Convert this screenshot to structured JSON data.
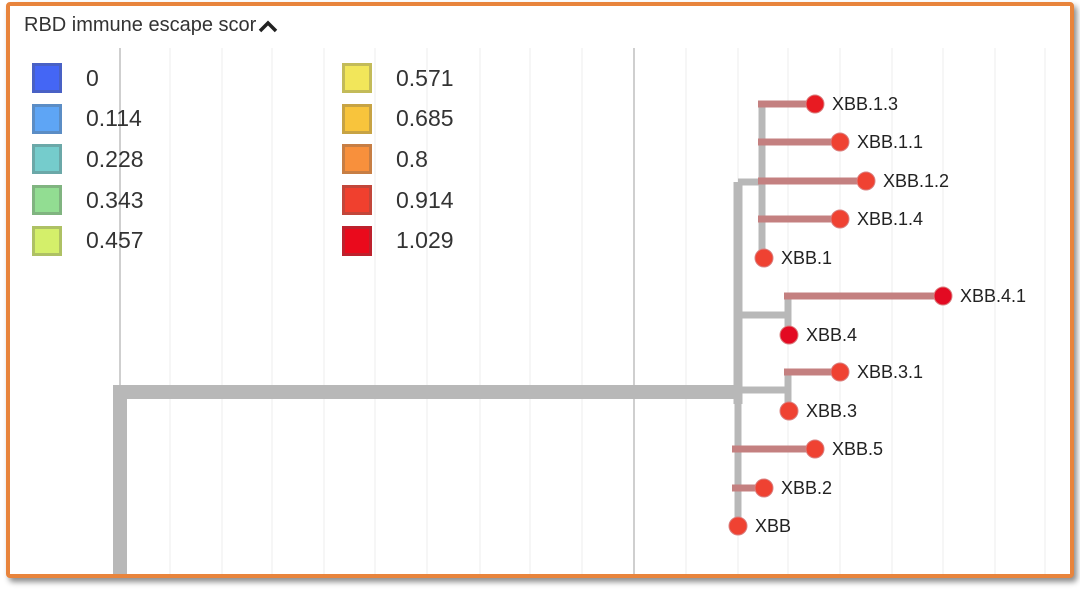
{
  "legend": {
    "title": "RBD immune escape scor",
    "items": [
      {
        "label": "0",
        "color": "#4466f5"
      },
      {
        "label": "0.114",
        "color": "#5ea5f5"
      },
      {
        "label": "0.228",
        "color": "#75cccc"
      },
      {
        "label": "0.343",
        "color": "#92dd92"
      },
      {
        "label": "0.457",
        "color": "#d4ef6a"
      },
      {
        "label": "0.571",
        "color": "#f2e65a"
      },
      {
        "label": "0.685",
        "color": "#f8c43c"
      },
      {
        "label": "0.8",
        "color": "#f8903c"
      },
      {
        "label": "0.914",
        "color": "#f0402e"
      },
      {
        "label": "1.029",
        "color": "#ea0a1c"
      }
    ]
  },
  "tree": {
    "tips": [
      {
        "name": "XBB.1.3",
        "color": "#e81b22"
      },
      {
        "name": "XBB.1.1",
        "color": "#ef4232"
      },
      {
        "name": "XBB.1.2",
        "color": "#ef4232"
      },
      {
        "name": "XBB.1.4",
        "color": "#ef4232"
      },
      {
        "name": "XBB.1",
        "color": "#ef4232"
      },
      {
        "name": "XBB.4.1",
        "color": "#e30a22"
      },
      {
        "name": "XBB.4",
        "color": "#e30a22"
      },
      {
        "name": "XBB.3.1",
        "color": "#ef4232"
      },
      {
        "name": "XBB.3",
        "color": "#ef4232"
      },
      {
        "name": "XBB.5",
        "color": "#ef4232"
      },
      {
        "name": "XBB.2",
        "color": "#ef4232"
      },
      {
        "name": "XBB",
        "color": "#ef4232"
      }
    ]
  }
}
